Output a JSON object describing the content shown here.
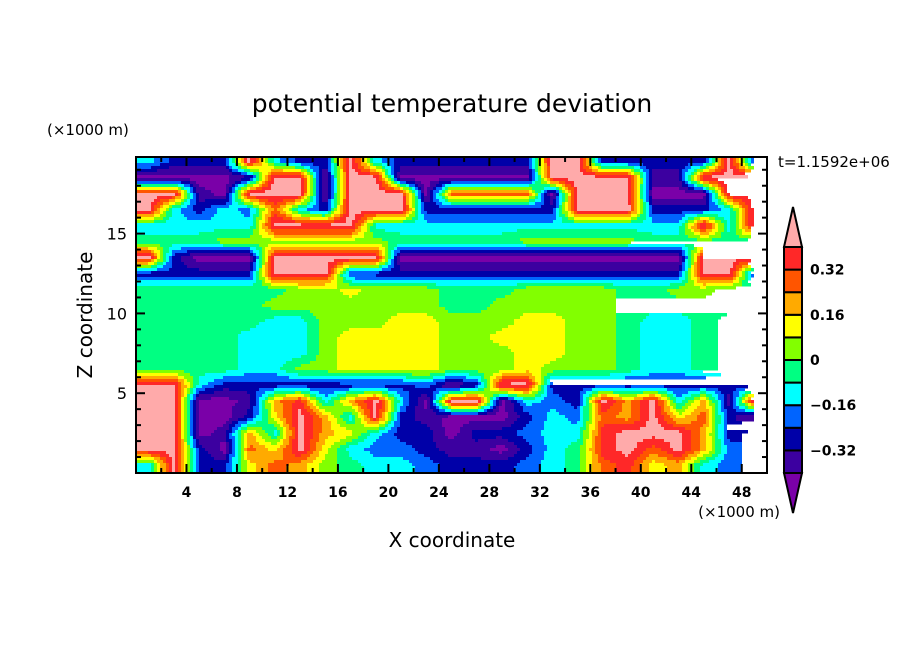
{
  "chart_data": {
    "type": "heatmap",
    "title": "potential temperature deviation",
    "xlabel": "X coordinate",
    "ylabel": "Z coordinate",
    "x_unit": "(×1000 m)",
    "y_unit": "(×1000 m)",
    "time_label": "t=1.1592e+06",
    "xlim": [
      0,
      50
    ],
    "ylim": [
      0,
      19.8
    ],
    "x_ticks": [
      4,
      8,
      12,
      16,
      20,
      24,
      28,
      32,
      36,
      40,
      44,
      48
    ],
    "x_tick_labels": [
      "4",
      "8",
      "12",
      "16",
      "20",
      "24",
      "28",
      "32",
      "36",
      "40",
      "44",
      "48"
    ],
    "y_ticks": [
      5,
      10,
      15
    ],
    "y_tick_labels": [
      "5",
      "10",
      "15"
    ],
    "grid": false,
    "colorbar": {
      "boundaries": [
        -0.4,
        -0.32,
        -0.24,
        -0.16,
        -0.08,
        0,
        0.08,
        0.16,
        0.24,
        0.32,
        0.4
      ],
      "tick_values": [
        0.32,
        0.16,
        0,
        -0.16,
        -0.32
      ],
      "tick_labels": [
        "0.32",
        "0.16",
        "0",
        "−0.16",
        "−0.32"
      ],
      "colors": [
        "#7a00a8",
        "#3c00a0",
        "#0000a8",
        "#0064ff",
        "#00ffff",
        "#00ff82",
        "#82ff00",
        "#ffff00",
        "#ffaa00",
        "#ff5500",
        "#ff2828",
        "#ffaaaa"
      ],
      "extend": "both"
    },
    "x": [
      1,
      3,
      5,
      7,
      9,
      11,
      13,
      15,
      17,
      19,
      21,
      23,
      25,
      27,
      29,
      31,
      33,
      35,
      37,
      39,
      41,
      43,
      45,
      47,
      49
    ],
    "z": [
      19.5,
      18.5,
      17.5,
      16.5,
      15.5,
      14.5,
      13.5,
      12.5,
      11.5,
      10.5,
      9.5,
      8.5,
      7.5,
      6.5,
      5.5,
      4.5,
      3.5,
      2.5,
      1.5,
      0.5
    ],
    "values": [
      [
        -0.12,
        -0.28,
        -0.28,
        -0.28,
        0.44,
        -0.12,
        -0.28,
        -0.28,
        0.44,
        -0.12,
        -0.28,
        -0.28,
        -0.28,
        -0.28,
        -0.28,
        -0.28,
        0.44,
        0.44,
        -0.28,
        -0.28,
        -0.28,
        -0.28,
        -0.28,
        0.44,
        -0.28
      ],
      [
        -0.44,
        -0.44,
        -0.44,
        -0.44,
        -0.36,
        0.44,
        0.44,
        -0.44,
        0.44,
        0.44,
        -0.44,
        -0.44,
        -0.44,
        -0.44,
        -0.44,
        -0.44,
        0.44,
        0.44,
        0.44,
        0.44,
        -0.36,
        -0.36,
        0.44,
        0.44,
        0.44
      ],
      [
        0.44,
        0.44,
        -0.36,
        -0.44,
        0.44,
        0.44,
        0.44,
        -0.44,
        0.44,
        0.44,
        0.44,
        -0.44,
        0.28,
        0.28,
        0.28,
        0.28,
        -0.44,
        0.44,
        0.44,
        0.44,
        -0.44,
        -0.44,
        -0.44,
        0.44,
        0.44
      ],
      [
        0.44,
        -0.12,
        -0.28,
        -0.12,
        -0.2,
        0.28,
        -0.12,
        -0.28,
        0.44,
        0.44,
        0.44,
        -0.28,
        -0.28,
        -0.28,
        -0.28,
        -0.28,
        -0.28,
        0.44,
        0.44,
        0.44,
        -0.28,
        -0.28,
        -0.28,
        -0.12,
        0.44
      ],
      [
        -0.12,
        -0.12,
        -0.12,
        -0.12,
        -0.12,
        0.44,
        0.44,
        0.44,
        0.44,
        -0.12,
        -0.12,
        -0.12,
        -0.12,
        -0.12,
        -0.12,
        -0.12,
        -0.12,
        -0.12,
        -0.12,
        -0.12,
        -0.12,
        -0.12,
        0.44,
        -0.12,
        0.44
      ],
      [
        -0.04,
        -0.04,
        -0.04,
        0.04,
        0.04,
        0.04,
        0.04,
        0.04,
        0.04,
        0.04,
        -0.04,
        -0.04,
        -0.04,
        -0.04,
        -0.04,
        0.04,
        0.04,
        0.04,
        0.04,
        0.04,
        -0.04,
        -0.04,
        -0.04,
        -0.04,
        -0.04
      ],
      [
        0.44,
        -0.28,
        -0.44,
        -0.44,
        -0.44,
        0.44,
        0.44,
        0.44,
        0.44,
        0.44,
        -0.44,
        -0.44,
        -0.44,
        -0.44,
        -0.44,
        -0.44,
        -0.44,
        -0.44,
        -0.44,
        -0.44,
        -0.44,
        -0.44,
        0.44,
        0.44,
        0.44
      ],
      [
        -0.28,
        -0.28,
        -0.28,
        -0.28,
        -0.28,
        0.44,
        0.44,
        0.44,
        -0.28,
        -0.28,
        -0.28,
        -0.28,
        -0.28,
        -0.28,
        -0.28,
        -0.28,
        -0.28,
        -0.28,
        -0.28,
        -0.28,
        -0.28,
        -0.28,
        0.44,
        0.44,
        -0.28
      ],
      [
        -0.04,
        -0.04,
        -0.04,
        -0.04,
        -0.04,
        -0.04,
        0.04,
        0.04,
        0.12,
        0.04,
        0.04,
        0.04,
        -0.04,
        -0.04,
        -0.04,
        0.04,
        0.04,
        0.04,
        0.04,
        -0.04,
        -0.04,
        0.04,
        0.04,
        -0.04,
        -0.04
      ],
      [
        -0.04,
        -0.04,
        -0.04,
        -0.04,
        -0.04,
        0.04,
        0.04,
        0.04,
        0.04,
        0.04,
        0.04,
        0.04,
        -0.04,
        -0.04,
        0.04,
        0.04,
        0.04,
        0.04,
        0.04,
        -0.04,
        -0.04,
        -0.04,
        -0.04,
        -0.04,
        -0.04
      ],
      [
        -0.04,
        -0.04,
        -0.04,
        -0.04,
        -0.04,
        -0.12,
        -0.12,
        0.04,
        0.04,
        0.04,
        0.12,
        0.12,
        0.04,
        0.04,
        0.04,
        0.12,
        0.12,
        0.04,
        0.04,
        -0.04,
        -0.12,
        -0.12,
        -0.04,
        0.04,
        0.04
      ],
      [
        -0.04,
        -0.04,
        -0.04,
        -0.04,
        -0.12,
        -0.12,
        -0.12,
        0.04,
        0.12,
        0.12,
        0.12,
        0.12,
        0.04,
        0.04,
        0.12,
        0.12,
        0.12,
        0.04,
        0.04,
        -0.04,
        -0.12,
        -0.12,
        -0.04,
        0.04,
        0.04
      ],
      [
        -0.04,
        -0.04,
        -0.04,
        -0.04,
        -0.12,
        -0.12,
        -0.12,
        0.04,
        0.12,
        0.12,
        0.12,
        0.12,
        0.04,
        0.04,
        0.04,
        0.12,
        0.12,
        0.04,
        0.04,
        -0.04,
        -0.12,
        -0.12,
        -0.04,
        0.04,
        0.04
      ],
      [
        -0.04,
        -0.04,
        -0.04,
        -0.04,
        -0.12,
        -0.12,
        0.04,
        0.04,
        0.12,
        0.12,
        0.12,
        0.12,
        0.04,
        0.04,
        0.04,
        0.12,
        0.04,
        0.04,
        0.04,
        -0.04,
        -0.12,
        -0.12,
        -0.04,
        0.04,
        0.04
      ],
      [
        0.44,
        0.44,
        -0.12,
        -0.28,
        -0.28,
        -0.28,
        -0.28,
        -0.28,
        -0.28,
        -0.28,
        -0.28,
        -0.2,
        -0.44,
        -0.28,
        0.44,
        0.44,
        -0.28,
        -0.28,
        -0.28,
        -0.28,
        -0.28,
        -0.28,
        -0.28,
        -0.28,
        -0.28
      ],
      [
        0.44,
        0.44,
        -0.44,
        -0.44,
        -0.36,
        0.2,
        0.36,
        -0.12,
        0.2,
        0.44,
        -0.12,
        -0.44,
        0.44,
        0.44,
        -0.44,
        -0.12,
        -0.2,
        -0.28,
        0.44,
        0.2,
        0.44,
        -0.12,
        0.2,
        -0.36,
        0.44
      ],
      [
        0.44,
        0.44,
        -0.44,
        -0.44,
        -0.28,
        0.12,
        0.44,
        0.2,
        -0.12,
        0.44,
        -0.28,
        -0.36,
        -0.44,
        -0.44,
        -0.44,
        -0.28,
        -0.12,
        -0.2,
        0.28,
        0.2,
        0.44,
        0.12,
        0.28,
        -0.28,
        -0.44
      ],
      [
        0.44,
        0.44,
        -0.44,
        -0.36,
        0.2,
        -0.12,
        0.44,
        0.2,
        0.12,
        -0.12,
        -0.28,
        -0.28,
        -0.44,
        -0.28,
        -0.28,
        -0.2,
        -0.12,
        -0.12,
        0.36,
        0.44,
        0.44,
        0.44,
        0.2,
        -0.28,
        -0.2
      ],
      [
        0.44,
        0.44,
        -0.28,
        -0.44,
        0.28,
        0.12,
        0.44,
        0.12,
        -0.12,
        -0.2,
        -0.2,
        -0.28,
        -0.36,
        -0.36,
        -0.44,
        -0.28,
        -0.12,
        -0.04,
        0.36,
        0.44,
        0.28,
        0.44,
        0.2,
        -0.2,
        -0.28
      ],
      [
        -0.12,
        0.44,
        -0.28,
        -0.28,
        0.12,
        0.28,
        0.2,
        0.04,
        -0.04,
        -0.12,
        -0.12,
        -0.2,
        -0.28,
        -0.28,
        -0.28,
        -0.2,
        -0.12,
        -0.04,
        0.28,
        0.36,
        0.12,
        0.2,
        -0.12,
        -0.2,
        -0.28
      ]
    ]
  }
}
